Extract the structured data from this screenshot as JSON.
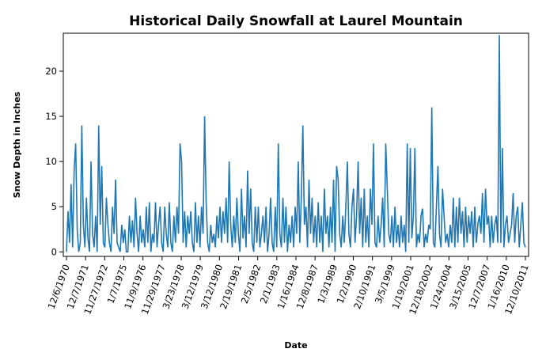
{
  "chart_data": {
    "type": "line",
    "title": "Historical Daily Snowfall at Laurel Mountain",
    "xlabel": "Date",
    "ylabel": "Snow Depth in Inches",
    "ylim": [
      -0.5,
      24.2
    ],
    "yticks": [
      0,
      5,
      10,
      15,
      20
    ],
    "grid": false,
    "legend": "none",
    "colors": {
      "line": "#1f77b4",
      "axes": "#000000",
      "background": "#ffffff"
    },
    "xticks": [
      "12/6/1970",
      "12/7/1971",
      "11/27/1972",
      "1/7/1975",
      "11/9/1976",
      "11/29/1977",
      "3/23/1978",
      "3/12/1979",
      "3/12/1980",
      "2/19/1981",
      "2/5/1982",
      "2/1/1983",
      "1/16/1984",
      "12/8/1987",
      "1/3/1989",
      "1/2/1990",
      "2/10/1991",
      "3/5/1999",
      "1/19/2001",
      "12/18/2002",
      "1/24/2004",
      "3/15/2005",
      "12/7/2007",
      "1/16/2010",
      "12/10/2011"
    ],
    "series": [
      {
        "values": [
          0,
          4.5,
          1,
          7.5,
          0.5,
          9,
          12,
          2.5,
          0,
          1,
          14,
          3,
          0.5,
          6,
          1.5,
          0,
          10,
          2,
          0.5,
          4,
          0,
          14,
          3,
          9.5,
          1,
          0.5,
          6,
          3,
          1,
          0,
          5,
          2,
          8,
          1,
          0.5,
          0,
          3,
          1,
          2.5,
          0,
          0,
          4,
          1,
          3.5,
          0.5,
          6,
          2,
          0,
          4,
          1,
          2.5,
          0.5,
          5,
          1,
          5.5,
          0,
          2,
          1,
          5.5,
          0.5,
          3,
          5,
          1,
          0,
          5,
          2,
          0.5,
          5.5,
          1,
          0,
          4,
          1,
          5,
          2,
          12,
          10,
          1,
          4.5,
          0.5,
          4,
          2,
          4.5,
          1,
          0,
          5.5,
          1,
          4,
          0.5,
          5,
          2,
          15,
          5.5,
          1,
          0,
          3,
          1,
          2,
          0.5,
          4,
          1.5,
          5,
          1,
          4.5,
          2,
          6,
          1,
          10,
          3,
          0.5,
          4,
          1,
          6,
          2,
          0,
          7,
          1.5,
          4,
          0.5,
          9,
          2,
          7,
          1,
          0,
          5,
          1,
          5,
          0.5,
          2,
          4,
          1,
          5,
          0,
          2,
          6,
          1,
          0,
          5,
          0.5,
          12,
          2,
          0.5,
          6,
          1,
          5,
          0,
          3,
          1,
          4,
          0.5,
          5,
          2,
          10,
          1,
          6,
          14,
          3,
          5,
          0.5,
          8,
          2,
          6,
          1,
          4,
          0.5,
          5.5,
          1,
          4,
          0,
          7,
          2,
          4,
          0.5,
          5,
          1,
          8,
          0,
          9.5,
          8,
          2,
          0.5,
          4,
          1,
          5,
          10,
          2,
          0.5,
          5,
          7,
          1,
          4,
          10,
          2,
          6,
          0.5,
          7,
          1,
          4,
          0.5,
          7,
          3,
          12,
          1,
          0.5,
          4,
          1,
          3,
          6,
          0.5,
          12,
          7,
          2,
          1,
          4,
          0.5,
          5,
          1,
          3,
          0.5,
          4,
          1,
          3,
          0,
          12,
          1,
          11.5,
          1.5,
          4,
          11.5,
          0.5,
          2,
          1,
          4,
          4.8,
          0.5,
          2,
          1,
          3,
          2.5,
          16,
          1,
          0.5,
          5,
          9.5,
          2,
          0.5,
          7,
          4,
          1,
          2,
          0.5,
          3,
          1,
          6,
          0.5,
          5,
          1,
          6,
          2,
          4.5,
          0.5,
          5,
          1,
          4,
          2,
          4.5,
          0.5,
          5,
          1,
          3,
          4,
          2,
          6.5,
          1,
          7,
          3,
          4,
          0.5,
          4,
          1,
          3,
          4,
          1,
          24,
          1,
          11.5,
          0.5,
          3,
          4,
          1,
          2,
          3,
          6.5,
          1,
          4,
          5,
          0.5,
          3,
          5.5,
          1,
          0.5
        ]
      }
    ]
  }
}
